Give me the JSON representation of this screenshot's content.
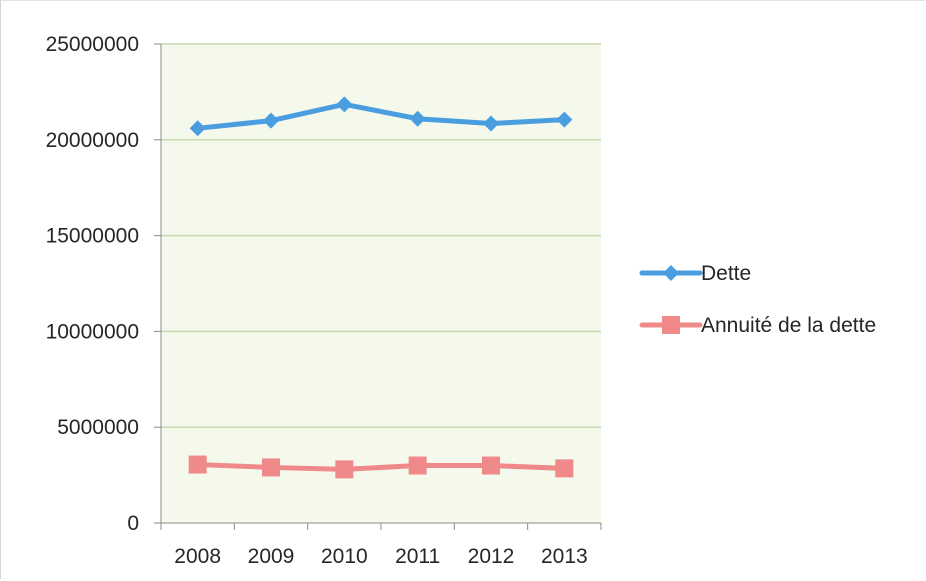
{
  "chart_data": {
    "type": "line",
    "categories": [
      "2008",
      "2009",
      "2010",
      "2011",
      "2012",
      "2013"
    ],
    "series": [
      {
        "name": "Dette",
        "color": "#4a9ee0",
        "marker": "diamond",
        "values": [
          20600000,
          21000000,
          21850000,
          21100000,
          20850000,
          21050000
        ]
      },
      {
        "name": "Annuité de la dette",
        "color": "#f08a8a",
        "marker": "square",
        "values": [
          3050000,
          2900000,
          2800000,
          3000000,
          3000000,
          2850000
        ]
      }
    ],
    "ylim": [
      0,
      25000000
    ],
    "yticks": [
      "0",
      "5000000",
      "10000000",
      "15000000",
      "20000000",
      "25000000"
    ],
    "ytick_values": [
      0,
      5000000,
      10000000,
      15000000,
      20000000,
      25000000
    ],
    "plot_background": "#f4f9ec",
    "gridline_color": "#c9d9b0",
    "grid": true,
    "legend_position": "right",
    "title": "",
    "xlabel": "",
    "ylabel": ""
  }
}
